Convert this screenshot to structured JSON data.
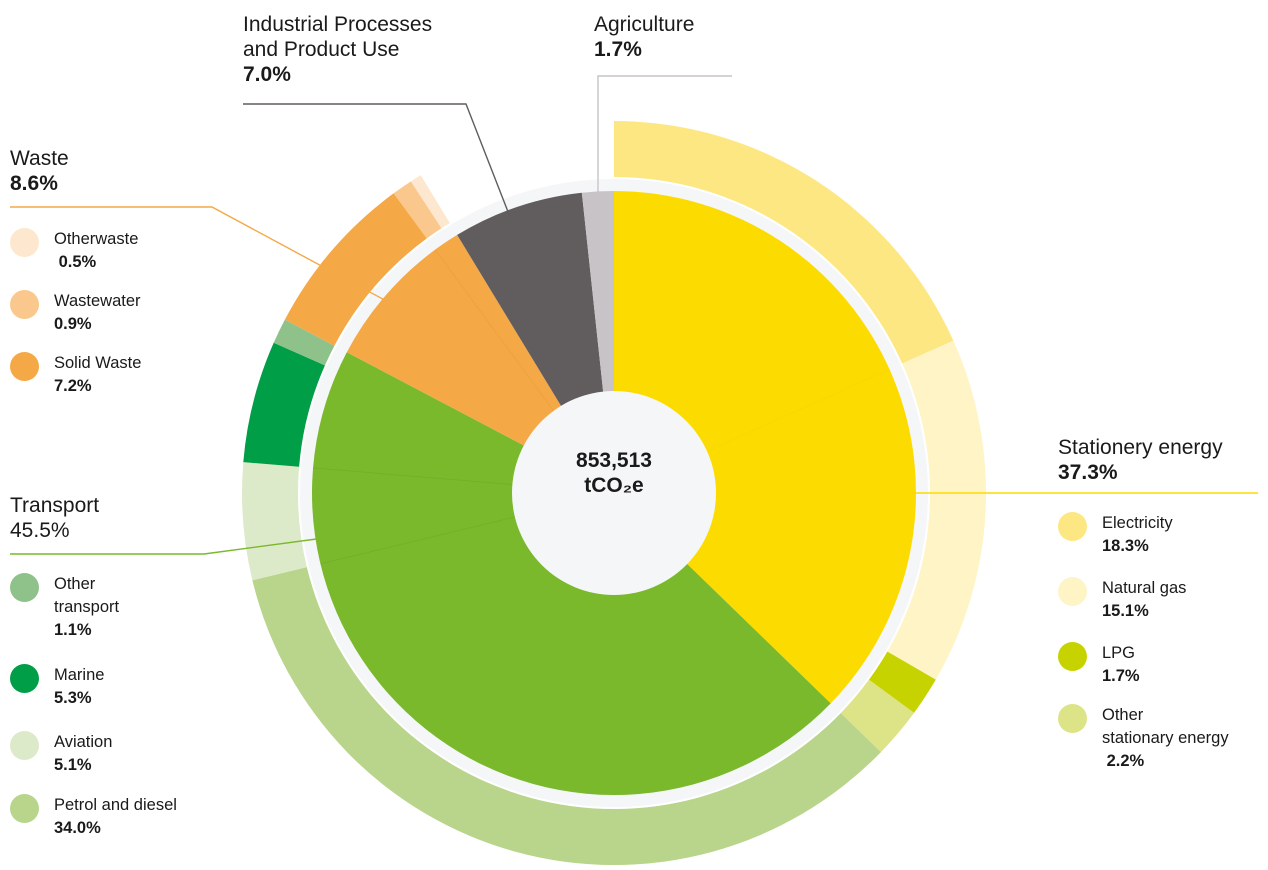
{
  "chart_data": {
    "type": "pie",
    "center": {
      "value": "853,513",
      "unit": "tCO₂e"
    },
    "categories": [
      {
        "key": "stationery",
        "name": "Stationery energy",
        "percent_label": "37.3%",
        "value": 37.3,
        "color": "#FCDC00",
        "subcategories": [
          {
            "key": "electricity",
            "name": "Electricity",
            "percent_label": "18.3%",
            "value": 18.3,
            "color": "#FDE782"
          },
          {
            "key": "natural-gas",
            "name": "Natural gas",
            "percent_label": "15.1%",
            "value": 15.1,
            "color": "#FEF4C6"
          },
          {
            "key": "lpg",
            "name": "LPG",
            "percent_label": "1.7%",
            "value": 1.7,
            "color": "#C7D300"
          },
          {
            "key": "other-stationary",
            "name": "Other\nstationary energy",
            "percent_label": " 2.2%",
            "value": 2.2,
            "color": "#DDE387"
          }
        ]
      },
      {
        "key": "transport",
        "name": "Transport",
        "percent_label": "45.5%",
        "value": 45.5,
        "color": "#7AB82C",
        "subcategories": [
          {
            "key": "petrol-diesel",
            "name": "Petrol and diesel",
            "percent_label": "34.0%",
            "value": 34.0,
            "color": "#B8D58B"
          },
          {
            "key": "aviation",
            "name": "Aviation",
            "percent_label": "5.1%",
            "value": 5.1,
            "color": "#DDEAC9"
          },
          {
            "key": "marine",
            "name": "Marine",
            "percent_label": "5.3%",
            "value": 5.3,
            "color": "#009E46"
          },
          {
            "key": "other-transport",
            "name": "Other\ntransport",
            "percent_label": "1.1%",
            "value": 1.1,
            "color": "#8FC18A"
          }
        ]
      },
      {
        "key": "waste",
        "name": "Waste",
        "percent_label": "8.6%",
        "value": 8.6,
        "color": "#F5A846",
        "subcategories": [
          {
            "key": "solid-waste",
            "name": "Solid Waste",
            "percent_label": "7.2%",
            "value": 7.2,
            "color": "#F5A846"
          },
          {
            "key": "wastewater",
            "name": "Wastewater",
            "percent_label": "0.9%",
            "value": 0.9,
            "color": "#FAC88D"
          },
          {
            "key": "otherwaste",
            "name": "Otherwaste",
            "percent_label": " 0.5%",
            "value": 0.5,
            "color": "#FDE7CE"
          }
        ]
      },
      {
        "key": "ippu",
        "name": "Industrial Processes\nand Product Use",
        "percent_label": "7.0%",
        "value": 7.0,
        "color": "#615C5D",
        "subcategories": [
          {
            "key": "ippu",
            "value": 7.0,
            "color": "#FFFFFF"
          }
        ]
      },
      {
        "key": "agriculture",
        "name": "Agriculture",
        "percent_label": "1.7%",
        "value": 1.7,
        "color": "#C8C3C6",
        "subcategories": [
          {
            "key": "agriculture",
            "value": 1.7,
            "color": "#FFFFFF"
          }
        ]
      }
    ],
    "leader_colors": {
      "stationery": "#FCDC00",
      "transport": "#7AB82C",
      "waste": "#F5A846",
      "ippu": "#615C5D",
      "agriculture": "#C8C3C6"
    }
  }
}
